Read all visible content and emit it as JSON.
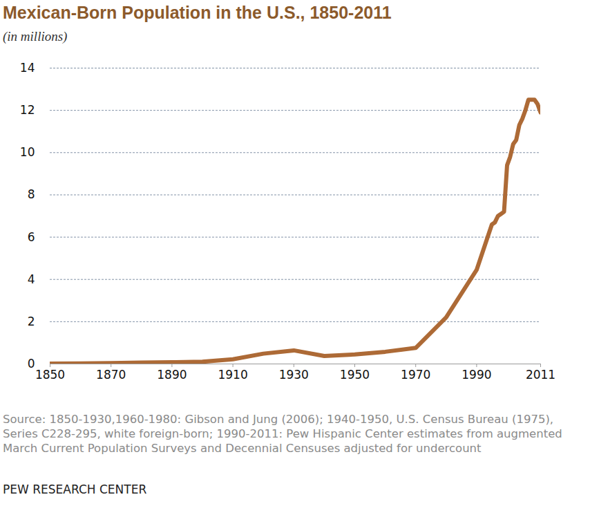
{
  "chart_data": {
    "type": "line",
    "title": "Mexican-Born Population in the U.S., 1850-2011",
    "subtitle": "(in millions)",
    "source": "Source: 1850-1930,1960-1980: Gibson and Jung (2006); 1940-1950, U.S. Census Bureau (1975), Series C228-295, white foreign-born; 1990-2011: Pew Hispanic Center estimates from augmented March Current Population Surveys and Decennial Censuses adjusted for undercount",
    "credit": "PEW RESEARCH CENTER",
    "x": [
      1850,
      1860,
      1870,
      1880,
      1890,
      1900,
      1910,
      1920,
      1930,
      1940,
      1950,
      1960,
      1970,
      1980,
      1990,
      1995,
      1996,
      1997,
      1998,
      1999,
      2000,
      2001,
      2002,
      2003,
      2004,
      2005,
      2006,
      2007,
      2008,
      2009,
      2010,
      2011
    ],
    "values": [
      0.013,
      0.027,
      0.042,
      0.068,
      0.078,
      0.103,
      0.222,
      0.486,
      0.641,
      0.377,
      0.451,
      0.576,
      0.76,
      2.2,
      4.45,
      6.6,
      6.7,
      7.0,
      7.1,
      7.2,
      9.4,
      9.8,
      10.4,
      10.6,
      11.3,
      11.6,
      12.0,
      12.5,
      12.5,
      12.5,
      12.3,
      11.9
    ],
    "color": "#ad6a36",
    "xlim": [
      1850,
      2011
    ],
    "xticks": [
      1850,
      1870,
      1890,
      1910,
      1930,
      1950,
      1970,
      1990,
      2011
    ],
    "ylim": [
      0,
      14
    ],
    "yticks": [
      0,
      2,
      4,
      6,
      8,
      10,
      12,
      14
    ],
    "grid": true
  }
}
